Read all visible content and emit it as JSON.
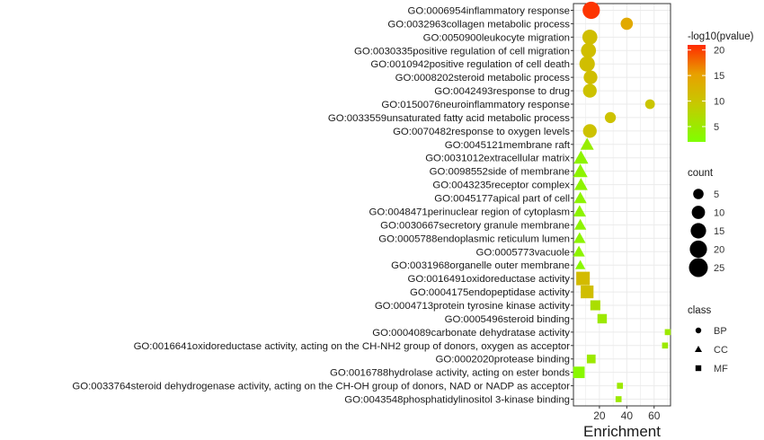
{
  "chart_data": {
    "type": "scatter",
    "xlabel": "Enrichment",
    "xlim": [
      1,
      72
    ],
    "x_ticks": [
      20,
      40,
      60
    ],
    "grid": true,
    "legend_placement": "right",
    "categories": [
      "GO:0006954inflammatory response",
      "GO:0032963collagen metabolic process",
      "GO:0050900leukocyte migration",
      "GO:0030335positive regulation of cell migration",
      "GO:0010942positive regulation of cell death",
      "GO:0008202steroid metabolic process",
      "GO:0042493response to drug",
      "GO:0150076neuroinflammatory response",
      "GO:0033559unsaturated fatty acid metabolic process",
      "GO:0070482response to oxygen levels",
      "GO:0045121membrane raft",
      "GO:0031012extracellular matrix",
      "GO:0098552side of membrane",
      "GO:0043235receptor complex",
      "GO:0045177apical part of cell",
      "GO:0048471perinuclear region of cytoplasm",
      "GO:0030667secretory granule membrane",
      "GO:0005788endoplasmic reticulum lumen",
      "GO:0005773vacuole",
      "GO:0031968organelle outer membrane",
      "GO:0016491oxidoreductase activity",
      "GO:0004175endopeptidase activity",
      "GO:0004713protein tyrosine kinase activity",
      "GO:0005496steroid binding",
      "GO:0004089carbonate dehydratase activity",
      "GO:0016641oxidoreductase activity, acting on the CH-NH2 group of donors, oxygen as acceptor",
      "GO:0002020protease binding",
      "GO:0016788hydrolase activity, acting on ester bonds",
      "GO:0033764steroid dehydrogenase activity, acting on the CH-OH group of donors, NAD or NADP as acceptor",
      "GO:0043548phosphatidylinositol 3-kinase binding"
    ],
    "points": [
      {
        "x": 14,
        "neglog10p": 20.5,
        "count": 20,
        "class": "BP"
      },
      {
        "x": 40,
        "neglog10p": 14,
        "count": 8,
        "class": "BP"
      },
      {
        "x": 13,
        "neglog10p": 11,
        "count": 14,
        "class": "BP"
      },
      {
        "x": 12,
        "neglog10p": 11,
        "count": 14,
        "class": "BP"
      },
      {
        "x": 11,
        "neglog10p": 11,
        "count": 15,
        "class": "BP"
      },
      {
        "x": 13.5,
        "neglog10p": 11,
        "count": 11,
        "class": "BP"
      },
      {
        "x": 13,
        "neglog10p": 10.5,
        "count": 11,
        "class": "BP"
      },
      {
        "x": 57,
        "neglog10p": 10,
        "count": 4,
        "class": "BP"
      },
      {
        "x": 28,
        "neglog10p": 10.5,
        "count": 6,
        "class": "BP"
      },
      {
        "x": 13,
        "neglog10p": 10.5,
        "count": 11,
        "class": "BP"
      },
      {
        "x": 11,
        "neglog10p": 4.5,
        "count": 7,
        "class": "CC"
      },
      {
        "x": 6.5,
        "neglog10p": 3.5,
        "count": 9,
        "class": "CC"
      },
      {
        "x": 6,
        "neglog10p": 3.5,
        "count": 9,
        "class": "CC"
      },
      {
        "x": 6.5,
        "neglog10p": 3.5,
        "count": 7,
        "class": "CC"
      },
      {
        "x": 6,
        "neglog10p": 3.5,
        "count": 6,
        "class": "CC"
      },
      {
        "x": 5.5,
        "neglog10p": 3.5,
        "count": 6,
        "class": "CC"
      },
      {
        "x": 6,
        "neglog10p": 3.5,
        "count": 5,
        "class": "CC"
      },
      {
        "x": 5.5,
        "neglog10p": 3.5,
        "count": 5,
        "class": "CC"
      },
      {
        "x": 5,
        "neglog10p": 3.5,
        "count": 5,
        "class": "CC"
      },
      {
        "x": 6,
        "neglog10p": 3,
        "count": 3,
        "class": "CC"
      },
      {
        "x": 8,
        "neglog10p": 11.5,
        "count": 14,
        "class": "MF"
      },
      {
        "x": 11,
        "neglog10p": 11,
        "count": 12,
        "class": "MF"
      },
      {
        "x": 17,
        "neglog10p": 6.5,
        "count": 6,
        "class": "MF"
      },
      {
        "x": 22,
        "neglog10p": 5,
        "count": 5,
        "class": "MF"
      },
      {
        "x": 70,
        "neglog10p": 5,
        "count": 1,
        "class": "MF"
      },
      {
        "x": 68,
        "neglog10p": 5,
        "count": 1,
        "class": "MF"
      },
      {
        "x": 14,
        "neglog10p": 5,
        "count": 4,
        "class": "MF"
      },
      {
        "x": 5,
        "neglog10p": 3,
        "count": 9,
        "class": "MF"
      },
      {
        "x": 35,
        "neglog10p": 5,
        "count": 1,
        "class": "MF"
      },
      {
        "x": 34,
        "neglog10p": 5,
        "count": 1,
        "class": "MF"
      }
    ],
    "color_legend": {
      "title": "-log10(pvalue)",
      "range": [
        2,
        21
      ],
      "ticks": [
        5,
        10,
        15,
        20
      ],
      "colors": [
        "#7fff00",
        "#c8c800",
        "#e8a000",
        "#ff2a00"
      ]
    },
    "size_legend": {
      "title": "count",
      "values": [
        5,
        10,
        15,
        20,
        25
      ]
    },
    "shape_legend": {
      "title": "class",
      "items": [
        {
          "label": "BP",
          "shape": "circle"
        },
        {
          "label": "CC",
          "shape": "triangle"
        },
        {
          "label": "MF",
          "shape": "square"
        }
      ]
    }
  }
}
